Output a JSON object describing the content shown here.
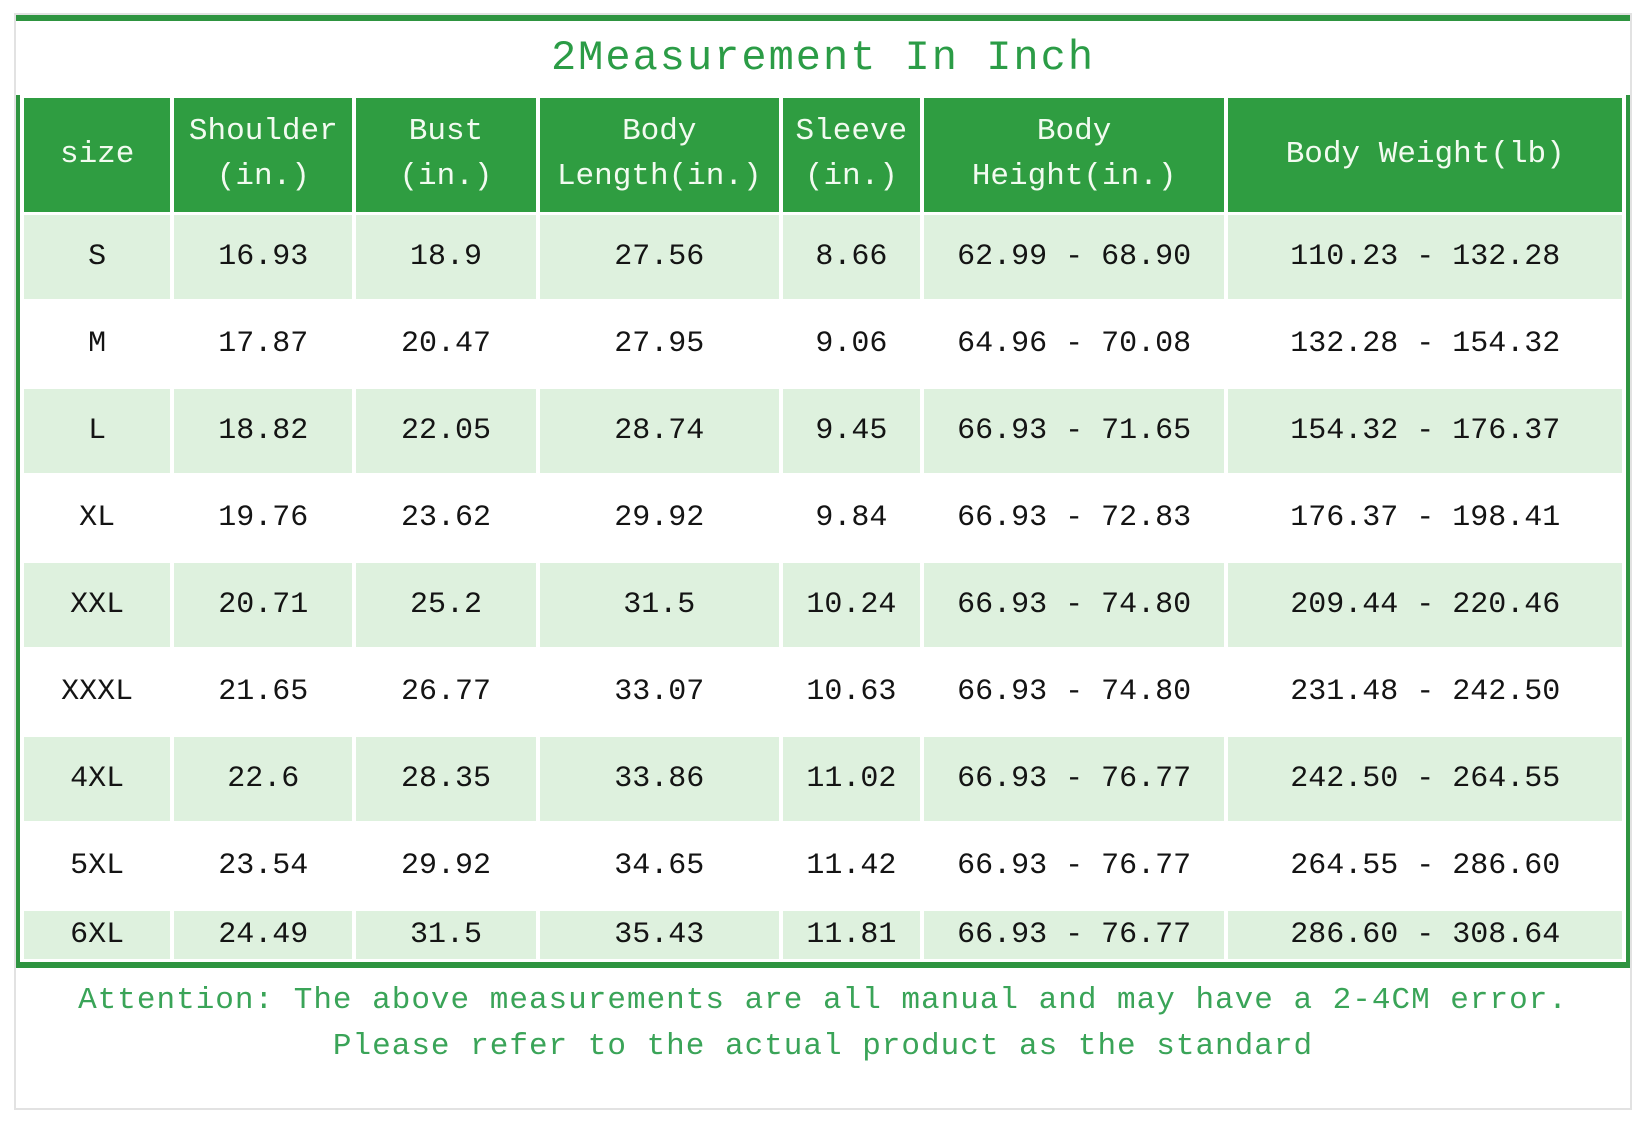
{
  "title": "2Measurement In Inch",
  "attention": {
    "line1": "Attention: The above measurements are all manual and may have a 2-4CM error.",
    "line2": "Please refer to the actual product as the standard"
  },
  "colors": {
    "header_green": "#2f9d41",
    "border_green": "#2e9440",
    "row_pale_green": "#def1de",
    "title_green": "#2b9c46",
    "attention_green": "#3aa458",
    "header_text": "#f2fbf0",
    "body_text": "#141414",
    "card_border": "#e2e2e2"
  },
  "chart_data": {
    "type": "table",
    "title": "2Measurement In Inch",
    "columns": [
      "size",
      "Shoulder (in.)",
      "Bust (in.)",
      "Body Length(in.)",
      "Sleeve (in.)",
      "Body Height(in.)",
      "Body Weight(lb)"
    ],
    "header_display": [
      "size",
      "Shoulder\n(in.)",
      "Bust\n(in.)",
      "Body\nLength(in.)",
      "Sleeve\n(in.)",
      "Body\nHeight(in.)",
      "Body Weight(lb)"
    ],
    "rows": [
      {
        "size": "S",
        "shoulder": "16.93",
        "bust": "18.9",
        "body_length": "27.56",
        "sleeve": "8.66",
        "body_height": "62.99 - 68.90",
        "body_weight": "110.23 - 132.28"
      },
      {
        "size": "M",
        "shoulder": "17.87",
        "bust": "20.47",
        "body_length": "27.95",
        "sleeve": "9.06",
        "body_height": "64.96 - 70.08",
        "body_weight": "132.28 - 154.32"
      },
      {
        "size": "L",
        "shoulder": "18.82",
        "bust": "22.05",
        "body_length": "28.74",
        "sleeve": "9.45",
        "body_height": "66.93 - 71.65",
        "body_weight": "154.32 - 176.37"
      },
      {
        "size": "XL",
        "shoulder": "19.76",
        "bust": "23.62",
        "body_length": "29.92",
        "sleeve": "9.84",
        "body_height": "66.93 - 72.83",
        "body_weight": "176.37 - 198.41"
      },
      {
        "size": "XXL",
        "shoulder": "20.71",
        "bust": "25.2",
        "body_length": "31.5",
        "sleeve": "10.24",
        "body_height": "66.93 - 74.80",
        "body_weight": "209.44 - 220.46"
      },
      {
        "size": "XXXL",
        "shoulder": "21.65",
        "bust": "26.77",
        "body_length": "33.07",
        "sleeve": "10.63",
        "body_height": "66.93 - 74.80",
        "body_weight": "231.48 - 242.50"
      },
      {
        "size": "4XL",
        "shoulder": "22.6",
        "bust": "28.35",
        "body_length": "33.86",
        "sleeve": "11.02",
        "body_height": "66.93 - 76.77",
        "body_weight": "242.50 - 264.55"
      },
      {
        "size": "5XL",
        "shoulder": "23.54",
        "bust": "29.92",
        "body_length": "34.65",
        "sleeve": "11.42",
        "body_height": "66.93 - 76.77",
        "body_weight": "264.55 - 286.60"
      },
      {
        "size": "6XL",
        "shoulder": "24.49",
        "bust": "31.5",
        "body_length": "35.43",
        "sleeve": "11.81",
        "body_height": "66.93 - 76.77",
        "body_weight": "286.60 - 308.64"
      }
    ]
  }
}
